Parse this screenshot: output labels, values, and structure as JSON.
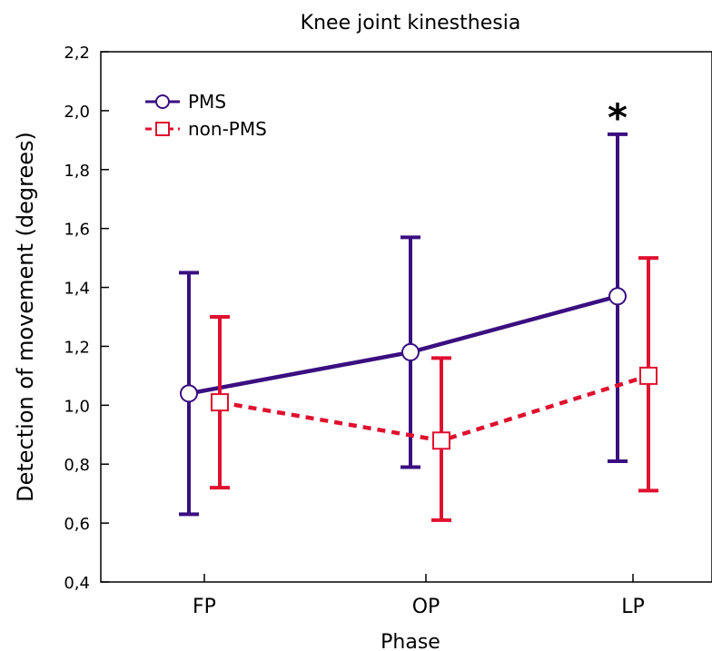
{
  "chart_data": {
    "type": "line",
    "title": "Knee joint kinesthesia",
    "xlabel": "Phase",
    "ylabel": "Detection of movement (degrees)",
    "categories": [
      "FP",
      "OP",
      "LP"
    ],
    "ylim": [
      0.4,
      2.2
    ],
    "yticks": [
      0.4,
      0.6,
      0.8,
      1.0,
      1.2,
      1.4,
      1.6,
      1.8,
      2.0,
      2.2
    ],
    "ytick_labels": [
      "0,4",
      "0,6",
      "0,8",
      "1,0",
      "1,2",
      "1,4",
      "1,6",
      "1,8",
      "2,0",
      "2,2"
    ],
    "grid": false,
    "legend_position": "top-left",
    "series": [
      {
        "name": "PMS",
        "color": "#3a0f80",
        "line_style": "solid",
        "marker": "circle",
        "values": [
          1.04,
          1.18,
          1.37
        ],
        "error_low": [
          0.63,
          0.79,
          0.81
        ],
        "error_high": [
          1.45,
          1.57,
          1.92
        ]
      },
      {
        "name": "non-PMS",
        "color": "#e0102f",
        "line_style": "dashed",
        "marker": "square",
        "values": [
          1.01,
          0.88,
          1.1
        ],
        "error_low": [
          0.72,
          0.61,
          0.71
        ],
        "error_high": [
          1.3,
          1.16,
          1.5
        ]
      }
    ],
    "annotations": [
      {
        "text": "*",
        "category": "LP",
        "y": 2.0
      }
    ]
  }
}
